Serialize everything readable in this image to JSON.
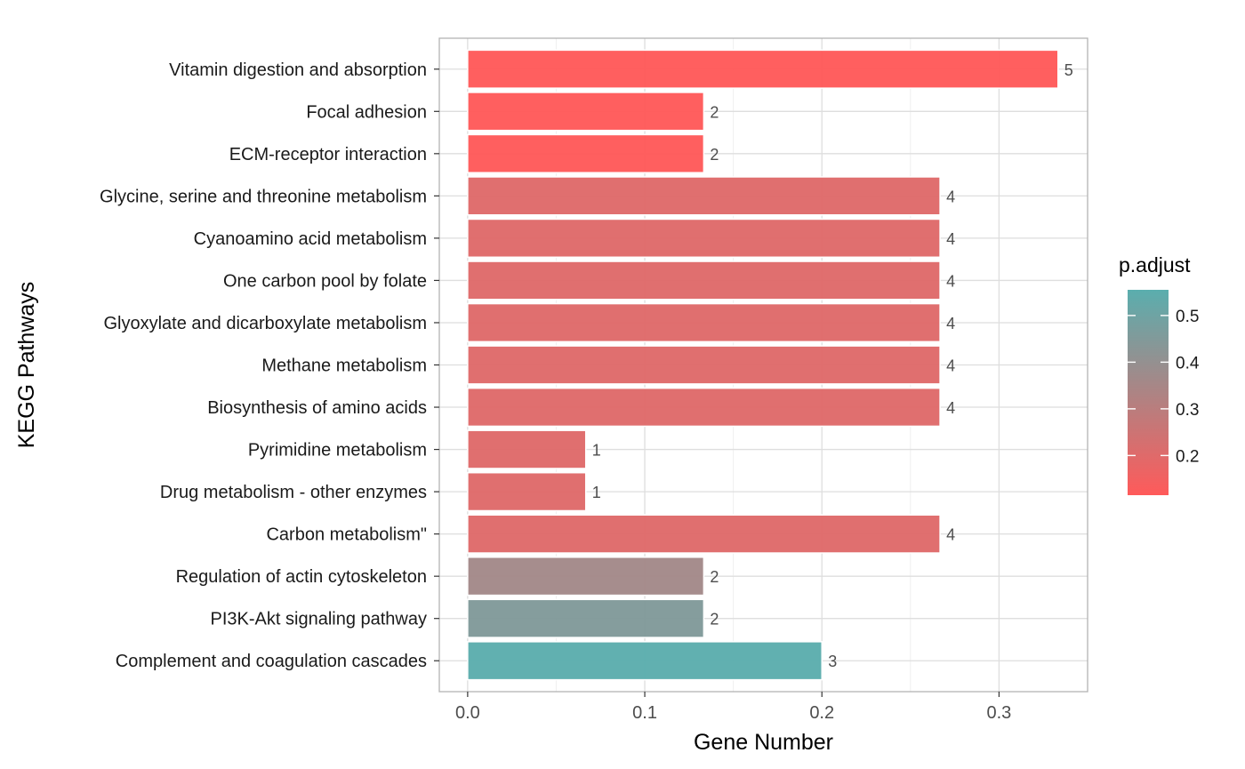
{
  "chart_data": {
    "type": "bar",
    "orientation": "horizontal",
    "xlabel": "Gene Number",
    "ylabel": "KEGG Pathways",
    "xlim": [
      -0.016,
      0.35
    ],
    "xticks": [
      0.0,
      0.1,
      0.2,
      0.3
    ],
    "xtick_labels": [
      "0.0",
      "0.1",
      "0.2",
      "0.3"
    ],
    "grid": true,
    "categories": [
      "Vitamin digestion and absorption",
      "Focal adhesion",
      "ECM-receptor interaction",
      "Glycine, serine and threonine metabolism",
      "Cyanoamino acid metabolism",
      "One carbon pool by folate",
      "Glyoxylate and dicarboxylate metabolism",
      "Methane metabolism",
      "Biosynthesis of amino acids",
      "Pyrimidine metabolism",
      "Drug metabolism - other enzymes",
      "Carbon metabolism\"",
      "Regulation of actin cytoskeleton",
      "PI3K-Akt signaling pathway",
      "Complement and coagulation cascades"
    ],
    "values": [
      0.3333,
      0.1333,
      0.1333,
      0.2667,
      0.2667,
      0.2667,
      0.2667,
      0.2667,
      0.2667,
      0.0667,
      0.0667,
      0.2667,
      0.1333,
      0.1333,
      0.2
    ],
    "bar_labels": [
      "5",
      "2",
      "2",
      "4",
      "4",
      "4",
      "4",
      "4",
      "4",
      "1",
      "1",
      "4",
      "2",
      "2",
      "3"
    ],
    "color_values": [
      0.115,
      0.115,
      0.115,
      0.2,
      0.2,
      0.2,
      0.2,
      0.2,
      0.2,
      0.2,
      0.2,
      0.2,
      0.36,
      0.45,
      0.55
    ],
    "legend": {
      "title": "p.adjust",
      "position": "right",
      "range": [
        0.115,
        0.555
      ],
      "ticks": [
        0.2,
        0.3,
        0.4,
        0.5
      ],
      "tick_labels": [
        "0.2",
        "0.3",
        "0.4",
        "0.5"
      ],
      "low_color": "#ff5a5a",
      "high_color": "#5aaeae"
    }
  }
}
